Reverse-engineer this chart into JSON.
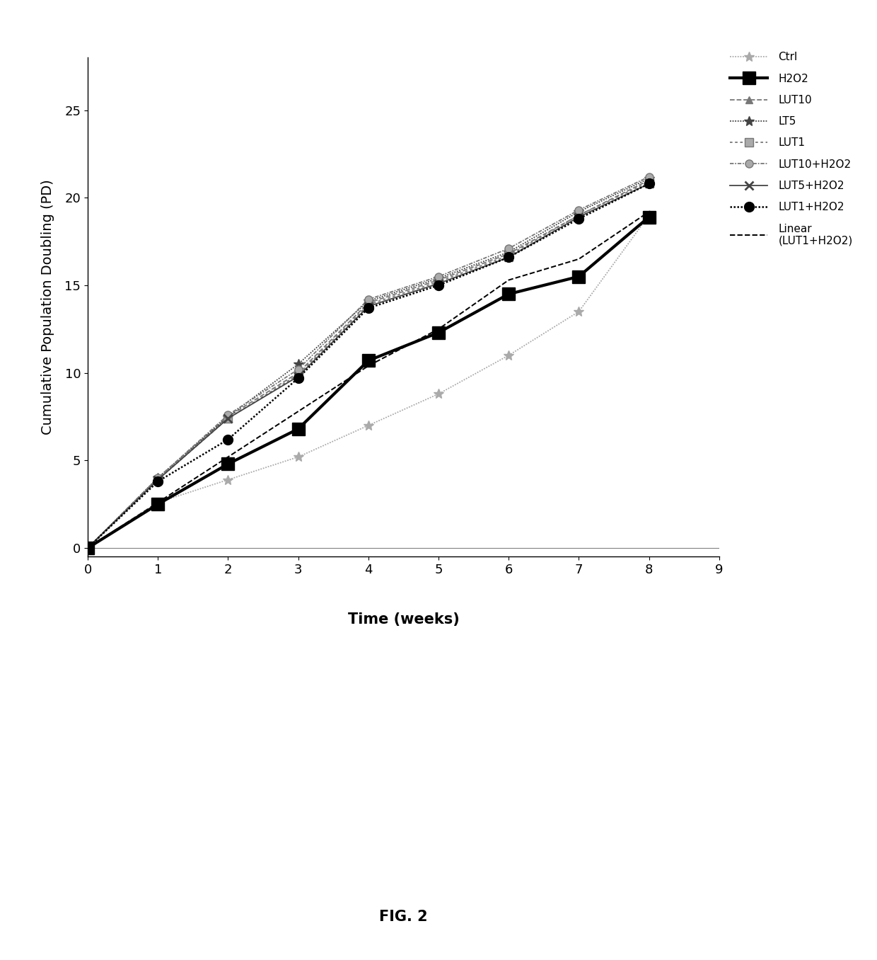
{
  "x": [
    0,
    1,
    2,
    3,
    4,
    5,
    6,
    7,
    8
  ],
  "Ctrl": [
    0,
    2.6,
    3.9,
    5.2,
    7.0,
    8.8,
    11.0,
    13.5,
    19.0
  ],
  "H2O2": [
    0,
    2.5,
    4.8,
    6.8,
    10.7,
    12.3,
    14.5,
    15.5,
    18.9
  ],
  "LUT10": [
    0,
    4.0,
    7.5,
    10.0,
    14.0,
    15.3,
    16.8,
    19.0,
    21.0
  ],
  "LT5": [
    0,
    4.0,
    7.5,
    10.5,
    14.1,
    15.4,
    16.9,
    19.2,
    21.1
  ],
  "LUT1": [
    0,
    3.9,
    7.4,
    9.9,
    13.9,
    15.2,
    16.7,
    19.0,
    20.9
  ],
  "LUT10+H2O2": [
    0,
    4.0,
    7.6,
    10.2,
    14.2,
    15.5,
    17.1,
    19.3,
    21.2
  ],
  "LUT5+H2O2": [
    0,
    3.9,
    7.4,
    9.8,
    13.8,
    15.1,
    16.6,
    18.9,
    20.8
  ],
  "LUT1+H2O2": [
    0,
    3.8,
    6.2,
    9.7,
    13.7,
    15.0,
    16.6,
    18.8,
    20.8
  ],
  "Linear_LUT1H2O2": [
    0,
    2.6,
    5.2,
    7.8,
    10.4,
    12.5,
    15.3,
    16.5,
    19.2
  ],
  "ylabel": "Cumulative Population Doubling (PD)",
  "xlabel": "Time (weeks)",
  "fig_label": "FIG. 2",
  "xlim": [
    0,
    9
  ],
  "ylim": [
    -0.5,
    28
  ],
  "yticks": [
    0,
    5,
    10,
    15,
    20,
    25
  ],
  "xticks": [
    0,
    1,
    2,
    3,
    4,
    5,
    6,
    7,
    8,
    9
  ]
}
